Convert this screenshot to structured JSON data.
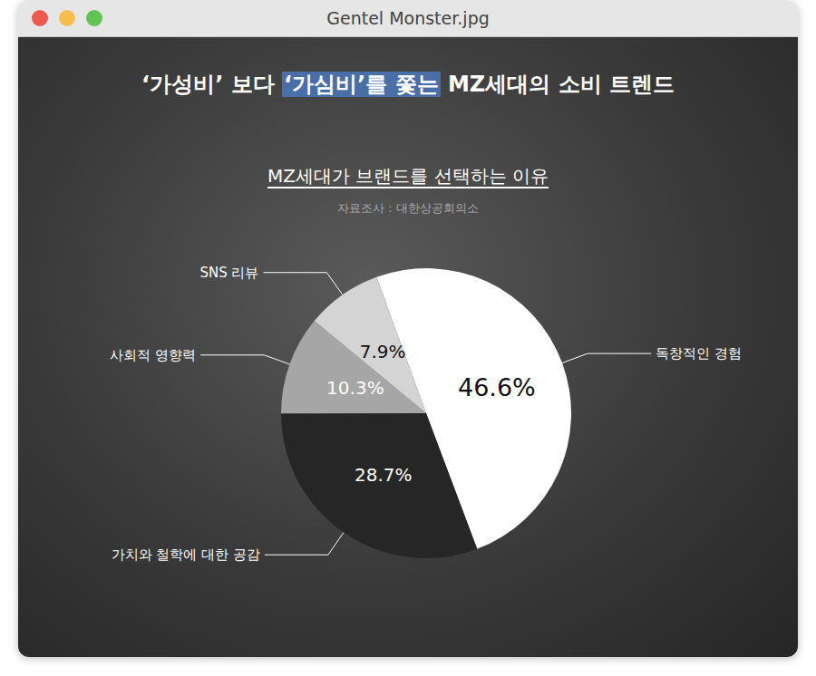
{
  "window": {
    "title": "Gentel Monster.jpg"
  },
  "chart_data": {
    "type": "pie",
    "title": "‘가성비’ 보다 ‘가심비’를 쫓는 MZ세대의 소비 트렌드",
    "title_highlight": "‘가심비’를 쫓는",
    "subtitle": "MZ세대가 브랜드를 선택하는 이유",
    "source": "자료조사 : 대한상공회의소",
    "categories": [
      "독창적인 경험",
      "가치와 철학에 대한 공감",
      "사회적 영향력",
      "SNS 리뷰"
    ],
    "values": [
      46.6,
      28.7,
      10.3,
      7.9
    ],
    "value_labels": [
      "46.6%",
      "28.7%",
      "10.3%",
      "7.9%"
    ],
    "colors": [
      "#ffffff",
      "#262626",
      "#a6a6a6",
      "#d4d4d4"
    ],
    "data_labels": true,
    "legend": false
  }
}
